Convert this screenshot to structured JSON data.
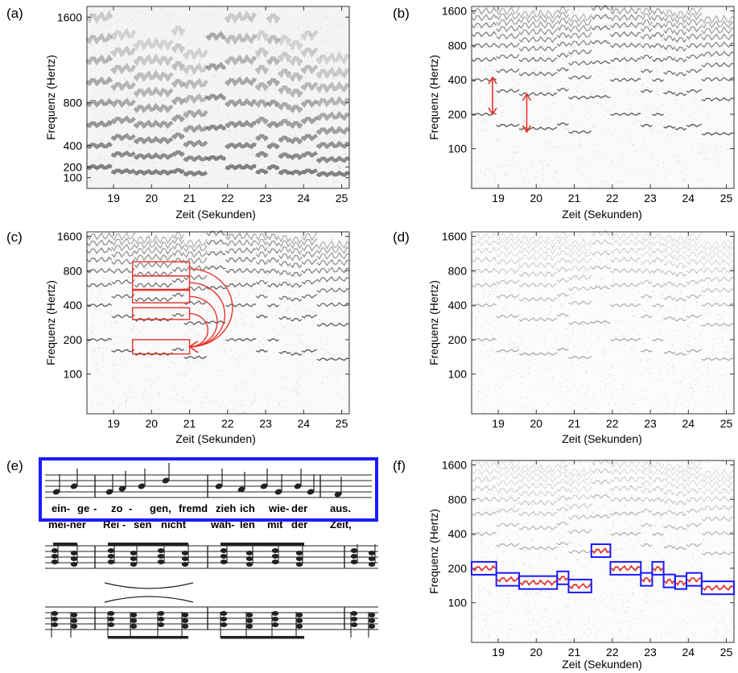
{
  "figure": {
    "panels": [
      {
        "label": "(a)",
        "type": "spectrogram",
        "scale": "linear",
        "ylim": [
          0,
          1700
        ],
        "yticks": [
          100,
          200,
          400,
          800,
          1600
        ]
      },
      {
        "label": "(b)",
        "type": "spectrogram",
        "scale": "log",
        "ylim": [
          45,
          1750
        ],
        "yticks": [
          100,
          200,
          400,
          800,
          1600
        ]
      },
      {
        "label": "(c)",
        "type": "spectrogram",
        "scale": "log",
        "ylim": [
          45,
          1750
        ],
        "yticks": [
          100,
          200,
          400,
          800,
          1600
        ]
      },
      {
        "label": "(d)",
        "type": "spectrogram",
        "scale": "log",
        "ylim": [
          45,
          1750
        ],
        "yticks": [
          100,
          200,
          400,
          800,
          1600
        ]
      },
      {
        "label": "(e)",
        "type": "score"
      },
      {
        "label": "(f)",
        "type": "spectrogram",
        "scale": "log",
        "ylim": [
          45,
          1750
        ],
        "yticks": [
          100,
          200,
          400,
          800,
          1600
        ]
      }
    ]
  },
  "chart_data": {
    "type": "heatmap",
    "xlabel": "Zeit (Sekunden)",
    "ylabel": "Frequenz (Hertz)",
    "xlim": [
      18.3,
      25.2
    ],
    "xticks": [
      19,
      20,
      21,
      22,
      23,
      24,
      25
    ],
    "panel_b_arrows": [
      {
        "x": 18.85,
        "y_from": 200,
        "y_to": 420
      },
      {
        "x": 19.75,
        "y_from": 140,
        "y_to": 300
      }
    ],
    "panel_c_boxes": [
      {
        "x0": 19.5,
        "x1": 21.0,
        "y0": 720,
        "y1": 960
      },
      {
        "x0": 19.5,
        "x1": 21.0,
        "y0": 550,
        "y1": 720
      },
      {
        "x0": 19.5,
        "x1": 21.0,
        "y0": 420,
        "y1": 540
      },
      {
        "x0": 19.5,
        "x1": 21.0,
        "y0": 300,
        "y1": 380
      },
      {
        "x0": 19.5,
        "x1": 21.0,
        "y0": 150,
        "y1": 200
      }
    ],
    "panel_f_melody": [
      {
        "t0": 18.3,
        "t1": 18.95,
        "f": 200
      },
      {
        "t0": 18.95,
        "t1": 19.55,
        "f": 160
      },
      {
        "t0": 19.55,
        "t1": 20.55,
        "f": 150
      },
      {
        "t0": 20.55,
        "t1": 20.85,
        "f": 165
      },
      {
        "t0": 20.85,
        "t1": 21.45,
        "f": 140
      },
      {
        "t0": 21.45,
        "t1": 21.95,
        "f": 285
      },
      {
        "t0": 21.95,
        "t1": 22.75,
        "f": 200
      },
      {
        "t0": 22.75,
        "t1": 23.05,
        "f": 160
      },
      {
        "t0": 23.05,
        "t1": 23.35,
        "f": 200
      },
      {
        "t0": 23.35,
        "t1": 23.65,
        "f": 155
      },
      {
        "t0": 23.65,
        "t1": 23.95,
        "f": 150
      },
      {
        "t0": 23.95,
        "t1": 24.35,
        "f": 160
      },
      {
        "t0": 24.35,
        "t1": 25.2,
        "f": 135
      }
    ]
  },
  "score": {
    "lyrics_line1": [
      "ein-",
      "ge",
      "-",
      "zo",
      "-",
      "gen,",
      "fremd",
      "zieh",
      "ich",
      "wie-",
      "der",
      "aus."
    ],
    "lyrics_line2": [
      "mei-ner",
      "Rei",
      "-",
      "sen",
      "nicht",
      "wäh-",
      "len",
      "mit",
      "der",
      "Zeit,"
    ]
  },
  "colors": {
    "highlight_red": "#e8332b",
    "melody_box_blue": "#1a1aff",
    "ink": "#222222"
  }
}
